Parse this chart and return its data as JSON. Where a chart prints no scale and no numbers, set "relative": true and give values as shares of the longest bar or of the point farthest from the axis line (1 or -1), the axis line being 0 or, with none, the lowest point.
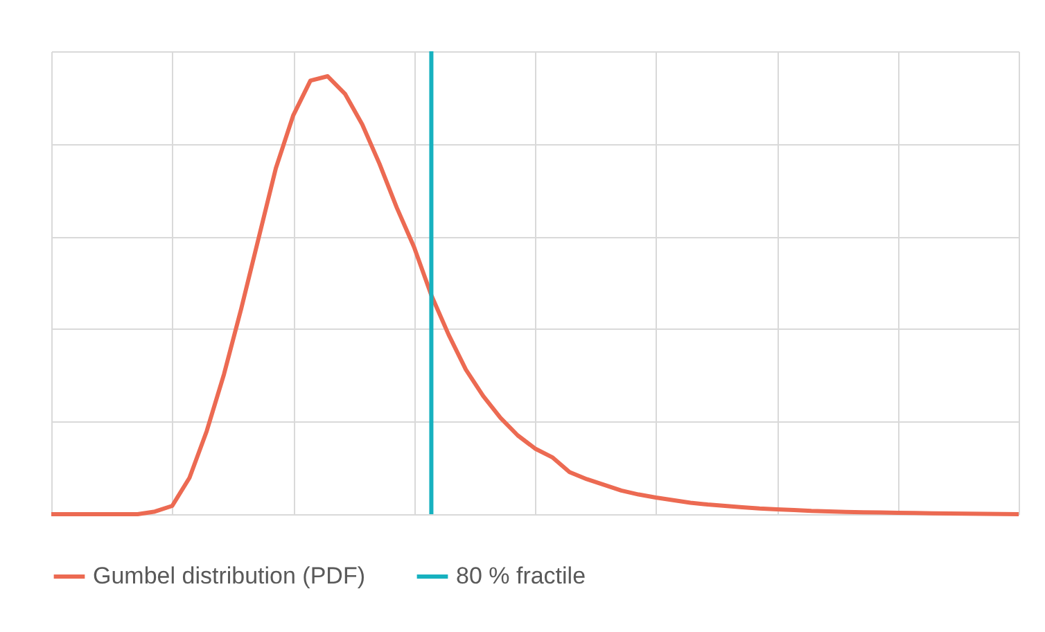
{
  "chart_data": {
    "type": "line",
    "relative": true,
    "grid": true,
    "legend": "bottom",
    "categories": [
      null,
      null,
      null,
      null,
      null,
      null,
      null,
      null,
      null,
      null,
      null,
      null,
      null,
      null,
      null,
      null,
      null,
      null,
      null,
      null,
      null,
      null,
      null,
      null,
      null,
      null,
      null,
      null,
      null,
      null,
      null,
      null,
      null,
      null,
      null,
      null,
      null,
      null,
      null,
      null,
      null,
      null,
      null,
      null,
      null,
      null,
      null,
      null,
      null,
      null,
      null,
      null,
      null,
      null,
      null,
      null,
      null
    ],
    "series": [
      {
        "name": "Gumbel distribution (PDF)",
        "color": "#ec6a52",
        "values": [
          0,
          0,
          0,
          0,
          0,
          0,
          0.006,
          0.019,
          0.083,
          0.19,
          0.32,
          0.47,
          0.63,
          0.79,
          0.91,
          0.99,
          1,
          0.96,
          0.89,
          0.8,
          0.7,
          0.61,
          0.5,
          0.41,
          0.33,
          0.27,
          0.22,
          0.18,
          0.15,
          0.13,
          0.096,
          0.08,
          0.067,
          0.054,
          0.045,
          0.038,
          0.032,
          0.026,
          0.022,
          0.019,
          0.016,
          0.013,
          0.011,
          0.0095,
          0.0075,
          0.0064,
          0.0053,
          0.0045,
          0.0038,
          0.0032,
          0.0026,
          0.0021,
          0.0016,
          0.0012,
          0.0008,
          0.0004,
          0
        ]
      }
    ],
    "ref_lines": [
      {
        "axis": "x",
        "label": "80 % fractile",
        "color": "#17b1bf"
      }
    ]
  }
}
